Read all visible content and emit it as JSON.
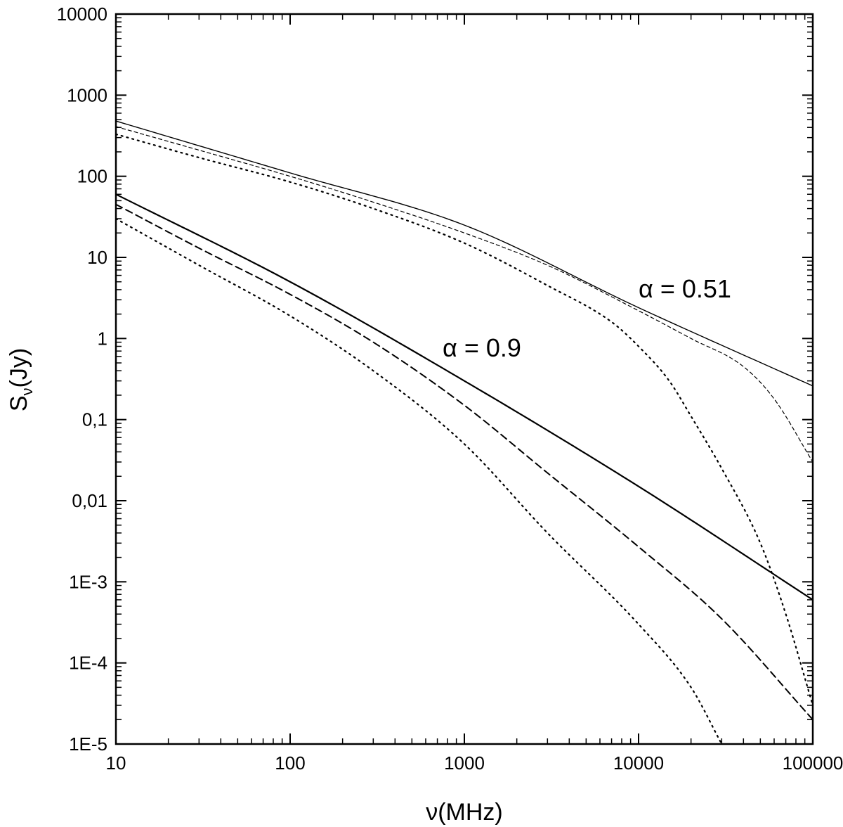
{
  "chart_data": {
    "type": "line",
    "xscale": "log",
    "yscale": "log",
    "xlim": [
      10,
      100000
    ],
    "ylim": [
      1e-05,
      10000
    ],
    "xlabel": "ν(MHz)",
    "ylabel": {
      "main": "S",
      "sub": "ν",
      "unit": "(Jy)"
    },
    "x_ticks": [
      {
        "value": 10,
        "label": "10"
      },
      {
        "value": 100,
        "label": "100"
      },
      {
        "value": 1000,
        "label": "1000"
      },
      {
        "value": 10000,
        "label": "10000"
      },
      {
        "value": 100000,
        "label": "100000"
      }
    ],
    "y_ticks": [
      {
        "value": 1e-05,
        "label": "1E-5"
      },
      {
        "value": 0.0001,
        "label": "1E-4"
      },
      {
        "value": 0.001,
        "label": "1E-3"
      },
      {
        "value": 0.01,
        "label": "0,01"
      },
      {
        "value": 0.1,
        "label": "0,1"
      },
      {
        "value": 1,
        "label": "1"
      },
      {
        "value": 10,
        "label": "10"
      },
      {
        "value": 100,
        "label": "100"
      },
      {
        "value": 1000,
        "label": "1000"
      },
      {
        "value": 10000,
        "label": "10000"
      }
    ],
    "annotations": [
      {
        "text": "α = 0.51",
        "x": 10000,
        "y": 3.2
      },
      {
        "text": "α = 0.9",
        "x": 750,
        "y": 0.6
      }
    ],
    "series": [
      {
        "style": "solid-thin",
        "group": "α = 0.51",
        "points": [
          [
            10,
            480
          ],
          [
            100,
            110
          ],
          [
            1000,
            25
          ],
          [
            10000,
            2.4
          ],
          [
            100000,
            0.26
          ]
        ]
      },
      {
        "style": "dashed-thin",
        "group": "α = 0.51",
        "points": [
          [
            10,
            410
          ],
          [
            30,
            210
          ],
          [
            100,
            100
          ],
          [
            300,
            48
          ],
          [
            1000,
            20
          ],
          [
            3000,
            8
          ],
          [
            10000,
            2.2
          ],
          [
            20000,
            1.0
          ],
          [
            40000,
            0.45
          ],
          [
            60000,
            0.18
          ],
          [
            100000,
            0.03
          ]
        ]
      },
      {
        "style": "dotted",
        "group": "α = 0.51",
        "points": [
          [
            10,
            330
          ],
          [
            30,
            170
          ],
          [
            100,
            85
          ],
          [
            300,
            40
          ],
          [
            1000,
            15
          ],
          [
            3000,
            4.5
          ],
          [
            7000,
            1.6
          ],
          [
            10000,
            0.8
          ],
          [
            15000,
            0.3
          ],
          [
            20000,
            0.11
          ],
          [
            30000,
            0.025
          ],
          [
            50000,
            0.003
          ],
          [
            70000,
            0.0004
          ],
          [
            100000,
            3e-05
          ]
        ]
      },
      {
        "style": "solid-thick",
        "group": "α = 0.9",
        "points": [
          [
            10,
            60
          ],
          [
            100,
            5
          ],
          [
            1000,
            0.3
          ],
          [
            10000,
            0.015
          ],
          [
            100000,
            0.0006
          ]
        ]
      },
      {
        "style": "dashed",
        "group": "α = 0.9",
        "points": [
          [
            10,
            45
          ],
          [
            30,
            13
          ],
          [
            100,
            3.5
          ],
          [
            300,
            0.9
          ],
          [
            1000,
            0.15
          ],
          [
            3000,
            0.022
          ],
          [
            10000,
            0.0027
          ],
          [
            30000,
            0.00035
          ],
          [
            100000,
            2e-05
          ]
        ]
      },
      {
        "style": "dotted",
        "group": "α = 0.9",
        "points": [
          [
            10,
            30
          ],
          [
            30,
            8
          ],
          [
            100,
            1.9
          ],
          [
            300,
            0.4
          ],
          [
            1000,
            0.05
          ],
          [
            3000,
            0.004
          ],
          [
            10000,
            0.0003
          ],
          [
            20000,
            5e-05
          ],
          [
            30000,
            1e-05
          ]
        ]
      }
    ]
  }
}
